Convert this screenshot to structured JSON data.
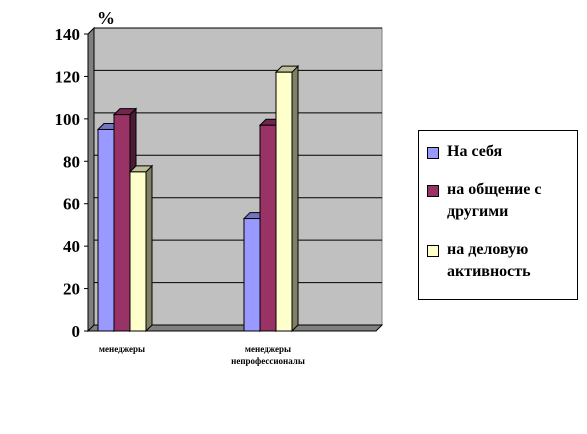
{
  "chart_data": {
    "type": "bar",
    "y_label": "%",
    "categories": [
      "менеджеры",
      "менеджеры непрофессионалы"
    ],
    "series": [
      {
        "name": "На себя",
        "color": "#9999ff",
        "values": [
          95,
          53
        ]
      },
      {
        "name": "на общение с другими",
        "color": "#993366",
        "values": [
          102,
          97
        ]
      },
      {
        "name": "на деловую активность",
        "color": "#ffffcc",
        "values": [
          75,
          122
        ]
      }
    ],
    "ylim": [
      0,
      140
    ],
    "yticks": [
      0,
      20,
      40,
      60,
      80,
      100,
      120,
      140
    ],
    "grid": true
  }
}
